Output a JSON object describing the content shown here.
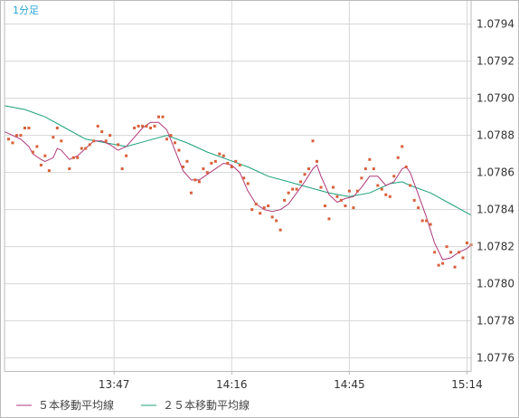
{
  "period_label": "1分足",
  "colors": {
    "background": "#ffffff",
    "grid": "#d6d6d6",
    "frame": "#bbbbbb",
    "scatter": "#d9603b",
    "ma5": "#b0397a",
    "ma25": "#1aa07a",
    "period_label": "#29a3d6"
  },
  "chart_data": {
    "type": "line",
    "title": "",
    "xlabel": "",
    "ylabel": "",
    "ylim": [
      1.07753,
      1.07953
    ],
    "y_ticks": [
      "1.0776",
      "1.0778",
      "1.0780",
      "1.0782",
      "1.0784",
      "1.0786",
      "1.0788",
      "1.0790",
      "1.0792",
      "1.0794"
    ],
    "x_tick_labels": [
      "13:47",
      "14:16",
      "14:45",
      "15:14"
    ],
    "x_tick_minutes": [
      27,
      56,
      85,
      114
    ],
    "x_range_minutes": [
      0,
      115
    ],
    "grid": true,
    "legend_position": "bottom-left",
    "series": [
      {
        "name": "",
        "style": "scatter",
        "points": [
          [
            1,
            1.07878
          ],
          [
            2,
            1.07876
          ],
          [
            3,
            1.0788
          ],
          [
            4,
            1.0788
          ],
          [
            5,
            1.07884
          ],
          [
            6,
            1.07884
          ],
          [
            7,
            1.07871
          ],
          [
            8,
            1.07874
          ],
          [
            9,
            1.07864
          ],
          [
            10,
            1.07869
          ],
          [
            11,
            1.07861
          ],
          [
            12,
            1.07879
          ],
          [
            13,
            1.07884
          ],
          [
            14,
            1.07877
          ],
          [
            16,
            1.07862
          ],
          [
            17,
            1.07868
          ],
          [
            18,
            1.07868
          ],
          [
            19,
            1.07873
          ],
          [
            20,
            1.07873
          ],
          [
            21,
            1.07875
          ],
          [
            22,
            1.07877
          ],
          [
            23,
            1.07885
          ],
          [
            24,
            1.07882
          ],
          [
            25,
            1.07877
          ],
          [
            26,
            1.0788
          ],
          [
            28,
            1.07875
          ],
          [
            29,
            1.07862
          ],
          [
            30,
            1.07869
          ],
          [
            32,
            1.07884
          ],
          [
            33,
            1.07885
          ],
          [
            34,
            1.07885
          ],
          [
            35,
            1.07885
          ],
          [
            36,
            1.07884
          ],
          [
            37,
            1.07885
          ],
          [
            38,
            1.0789
          ],
          [
            39,
            1.0789
          ],
          [
            40,
            1.07878
          ],
          [
            41,
            1.0788
          ],
          [
            42,
            1.07876
          ],
          [
            43,
            1.07872
          ],
          [
            44,
            1.07863
          ],
          [
            45,
            1.07866
          ],
          [
            46,
            1.07849
          ],
          [
            47,
            1.07856
          ],
          [
            48,
            1.07855
          ],
          [
            49,
            1.07862
          ],
          [
            50,
            1.0786
          ],
          [
            51,
            1.07865
          ],
          [
            52,
            1.07866
          ],
          [
            53,
            1.0787
          ],
          [
            54,
            1.07869
          ],
          [
            55,
            1.07865
          ],
          [
            56,
            1.07863
          ],
          [
            57,
            1.07866
          ],
          [
            58,
            1.07864
          ],
          [
            59,
            1.07857
          ],
          [
            60,
            1.07854
          ],
          [
            61,
            1.0784
          ],
          [
            62,
            1.07843
          ],
          [
            63,
            1.07838
          ],
          [
            64,
            1.07841
          ],
          [
            65,
            1.07842
          ],
          [
            66,
            1.07836
          ],
          [
            67,
            1.07834
          ],
          [
            68,
            1.07829
          ],
          [
            69,
            1.07845
          ],
          [
            70,
            1.07849
          ],
          [
            71,
            1.07851
          ],
          [
            72,
            1.07851
          ],
          [
            73,
            1.07855
          ],
          [
            74,
            1.07859
          ],
          [
            75,
            1.07862
          ],
          [
            76,
            1.07877
          ],
          [
            77,
            1.07866
          ],
          [
            78,
            1.07852
          ],
          [
            79,
            1.07842
          ],
          [
            80,
            1.07835
          ],
          [
            81,
            1.07852
          ],
          [
            82,
            1.07847
          ],
          [
            83,
            1.07845
          ],
          [
            84,
            1.07842
          ],
          [
            85,
            1.0785
          ],
          [
            86,
            1.07841
          ],
          [
            87,
            1.0785
          ],
          [
            88,
            1.07857
          ],
          [
            89,
            1.07862
          ],
          [
            90,
            1.07867
          ],
          [
            91,
            1.07862
          ],
          [
            92,
            1.07853
          ],
          [
            93,
            1.07851
          ],
          [
            94,
            1.07848
          ],
          [
            95,
            1.07847
          ],
          [
            96,
            1.07858
          ],
          [
            97,
            1.07868
          ],
          [
            98,
            1.07874
          ],
          [
            99,
            1.07863
          ],
          [
            100,
            1.07853
          ],
          [
            101,
            1.07845
          ],
          [
            102,
            1.07841
          ],
          [
            103,
            1.07834
          ],
          [
            104,
            1.07834
          ],
          [
            105,
            1.07832
          ],
          [
            106,
            1.07817
          ],
          [
            107,
            1.0781
          ],
          [
            108,
            1.07811
          ],
          [
            109,
            1.0782
          ],
          [
            110,
            1.07817
          ],
          [
            111,
            1.07809
          ],
          [
            112,
            1.07817
          ],
          [
            113,
            1.07814
          ],
          [
            114,
            1.07822
          ],
          [
            115,
            1.07821
          ]
        ]
      },
      {
        "name": "５本移動平均線",
        "style": "line",
        "points": [
          [
            0,
            1.07882
          ],
          [
            2,
            1.0788
          ],
          [
            4,
            1.07878
          ],
          [
            6,
            1.07874
          ],
          [
            7,
            1.0787
          ],
          [
            9,
            1.07867
          ],
          [
            10,
            1.07866
          ],
          [
            12,
            1.07868
          ],
          [
            13,
            1.07873
          ],
          [
            14,
            1.07872
          ],
          [
            16,
            1.07867
          ],
          [
            18,
            1.07869
          ],
          [
            20,
            1.07873
          ],
          [
            22,
            1.07877
          ],
          [
            24,
            1.07877
          ],
          [
            26,
            1.07875
          ],
          [
            28,
            1.07872
          ],
          [
            30,
            1.07874
          ],
          [
            32,
            1.07879
          ],
          [
            34,
            1.07884
          ],
          [
            36,
            1.07887
          ],
          [
            38,
            1.07887
          ],
          [
            40,
            1.07883
          ],
          [
            42,
            1.07872
          ],
          [
            44,
            1.07861
          ],
          [
            46,
            1.07856
          ],
          [
            48,
            1.07856
          ],
          [
            50,
            1.07859
          ],
          [
            52,
            1.07862
          ],
          [
            54,
            1.07865
          ],
          [
            56,
            1.07864
          ],
          [
            58,
            1.0786
          ],
          [
            60,
            1.0785
          ],
          [
            62,
            1.07843
          ],
          [
            64,
            1.0784
          ],
          [
            66,
            1.07839
          ],
          [
            68,
            1.0784
          ],
          [
            70,
            1.07843
          ],
          [
            72,
            1.07849
          ],
          [
            74,
            1.07855
          ],
          [
            76,
            1.07862
          ],
          [
            77,
            1.07864
          ],
          [
            78,
            1.07858
          ],
          [
            80,
            1.07848
          ],
          [
            82,
            1.07844
          ],
          [
            84,
            1.07846
          ],
          [
            86,
            1.07847
          ],
          [
            88,
            1.07852
          ],
          [
            90,
            1.07858
          ],
          [
            92,
            1.07858
          ],
          [
            94,
            1.07853
          ],
          [
            96,
            1.07855
          ],
          [
            98,
            1.07862
          ],
          [
            99,
            1.07863
          ],
          [
            100,
            1.0786
          ],
          [
            102,
            1.07848
          ],
          [
            104,
            1.07836
          ],
          [
            106,
            1.07822
          ],
          [
            108,
            1.07813
          ],
          [
            110,
            1.07814
          ],
          [
            112,
            1.07817
          ],
          [
            114,
            1.07819
          ],
          [
            115,
            1.07821
          ]
        ]
      },
      {
        "name": "２５本移動平均線",
        "style": "line",
        "points": [
          [
            0,
            1.07896
          ],
          [
            5,
            1.07894
          ],
          [
            10,
            1.0789
          ],
          [
            15,
            1.07884
          ],
          [
            20,
            1.07878
          ],
          [
            25,
            1.07876
          ],
          [
            30,
            1.07874
          ],
          [
            35,
            1.07877
          ],
          [
            40,
            1.0788
          ],
          [
            45,
            1.07876
          ],
          [
            50,
            1.07871
          ],
          [
            55,
            1.07867
          ],
          [
            60,
            1.07863
          ],
          [
            65,
            1.07858
          ],
          [
            70,
            1.07855
          ],
          [
            75,
            1.07852
          ],
          [
            80,
            1.07849
          ],
          [
            85,
            1.07847
          ],
          [
            90,
            1.07849
          ],
          [
            95,
            1.07854
          ],
          [
            98,
            1.07855
          ],
          [
            100,
            1.07853
          ],
          [
            105,
            1.07849
          ],
          [
            110,
            1.07843
          ],
          [
            115,
            1.07837
          ]
        ]
      }
    ]
  }
}
